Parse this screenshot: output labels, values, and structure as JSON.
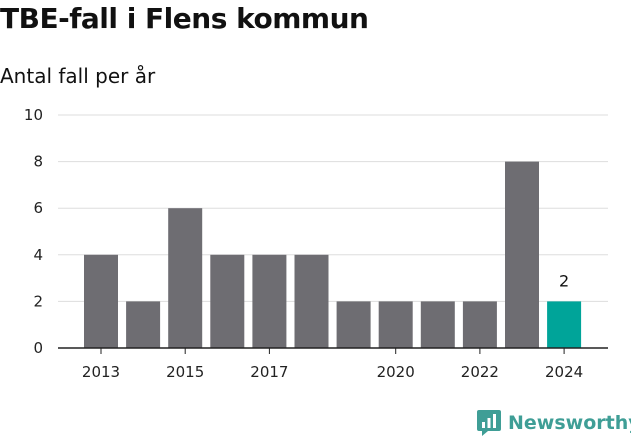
{
  "chart_data": {
    "type": "bar",
    "title": "TBE-fall i Flens kommun",
    "subtitle": "Antal fall per år",
    "categories": [
      "2013",
      "2014",
      "2015",
      "2016",
      "2017",
      "2018",
      "2019",
      "2020",
      "2021",
      "2022",
      "2023",
      "2024"
    ],
    "x_tick_labels": [
      "2013",
      "2015",
      "2017",
      "2020",
      "2022",
      "2024"
    ],
    "values": [
      4,
      2,
      6,
      4,
      4,
      4,
      2,
      2,
      2,
      2,
      8,
      2
    ],
    "ylim": [
      0,
      10
    ],
    "y_ticks": [
      0,
      2,
      4,
      6,
      8,
      10
    ],
    "highlight_index": 11,
    "highlight_label": "2",
    "grid": true,
    "colors": {
      "bar": "#6e6d72",
      "highlight": "#00a499",
      "grid": "#dddddd",
      "axis": "#222222"
    }
  },
  "brand": {
    "name": "Newsworthy",
    "color": "#3f9e96",
    "icon": "newsworthy-logo-icon"
  }
}
